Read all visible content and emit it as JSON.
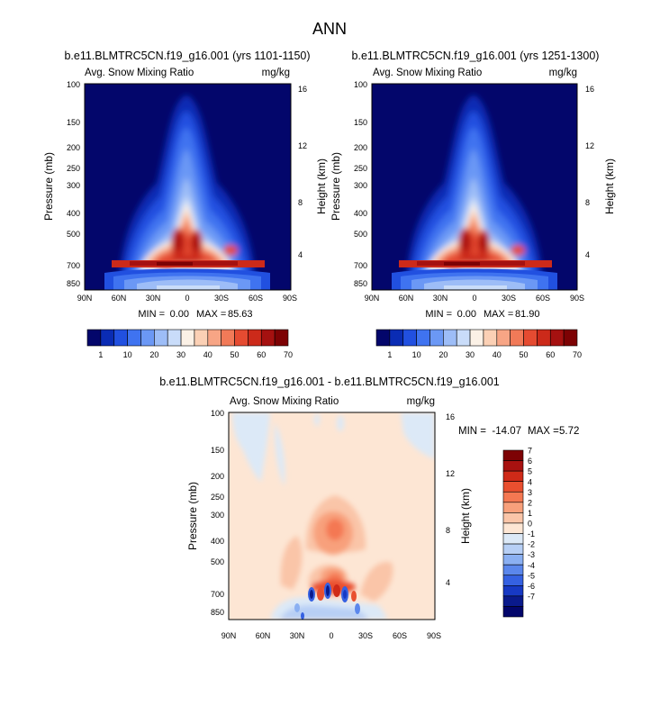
{
  "figure": {
    "title": "ANN"
  },
  "chart_data": [
    {
      "type": "heatmap",
      "title": "b.e11.BLMTRC5CN.f19_g16.001 (yrs 1101-1150)",
      "subtitle_left": "Avg. Snow Mixing Ratio",
      "subtitle_right": "mg/kg",
      "xlabel": "",
      "ylabel": "Pressure (mb)",
      "ylabel_right": "Height (km)",
      "x_ticks": [
        "90N",
        "60N",
        "30N",
        "0",
        "30S",
        "60S",
        "90S"
      ],
      "y_ticks": [
        "100",
        "150",
        "200",
        "250",
        "300",
        "400",
        "500",
        "700",
        "850"
      ],
      "y_ticks_right": [
        "16",
        "12",
        "8",
        "4"
      ],
      "stats": {
        "min_label": "MIN =",
        "min": "0.00",
        "max_label": "MAX =",
        "max": "85.63"
      }
    },
    {
      "type": "heatmap",
      "title": "b.e11.BLMTRC5CN.f19_g16.001 (yrs 1251-1300)",
      "subtitle_left": "Avg. Snow Mixing Ratio",
      "subtitle_right": "mg/kg",
      "xlabel": "",
      "ylabel": "Pressure (mb)",
      "ylabel_right": "Height (km)",
      "x_ticks": [
        "90N",
        "60N",
        "30N",
        "0",
        "30S",
        "60S",
        "90S"
      ],
      "y_ticks": [
        "100",
        "150",
        "200",
        "250",
        "300",
        "400",
        "500",
        "700",
        "850"
      ],
      "y_ticks_right": [
        "16",
        "12",
        "8",
        "4"
      ],
      "stats": {
        "min_label": "MIN =",
        "min": "0.00",
        "max_label": "MAX =",
        "max": "81.90"
      }
    },
    {
      "type": "heatmap",
      "title": "b.e11.BLMTRC5CN.f19_g16.001 - b.e11.BLMTRC5CN.f19_g16.001",
      "subtitle_left": "Avg. Snow Mixing Ratio",
      "subtitle_right": "mg/kg",
      "xlabel": "",
      "ylabel": "Pressure (mb)",
      "ylabel_right": "Height (km)",
      "x_ticks": [
        "90N",
        "60N",
        "30N",
        "0",
        "30S",
        "60S",
        "90S"
      ],
      "y_ticks": [
        "100",
        "150",
        "200",
        "250",
        "300",
        "400",
        "500",
        "700",
        "850"
      ],
      "y_ticks_right": [
        "16",
        "12",
        "8",
        "4"
      ],
      "stats": {
        "min_label": "MIN =",
        "min": "-14.07",
        "max_label": "MAX =",
        "max": "5.72"
      }
    }
  ],
  "colorbar_top": {
    "labels": [
      "1",
      "10",
      "20",
      "30",
      "40",
      "50",
      "60",
      "70"
    ],
    "colors": [
      "#03066b",
      "#0a2cb4",
      "#2150e0",
      "#3f73f0",
      "#6b98f5",
      "#9dbdf7",
      "#c9dcf9",
      "#fbf1e6",
      "#fbd0b5",
      "#f7a585",
      "#f17a58",
      "#e54b31",
      "#cc2a1a",
      "#a51110",
      "#7d0204"
    ]
  },
  "colorbar_diff": {
    "labels": [
      "7",
      "6",
      "5",
      "4",
      "3",
      "2",
      "1",
      "0",
      "-1",
      "-2",
      "-3",
      "-4",
      "-5",
      "-6",
      "-7"
    ],
    "colors": [
      "#7d0204",
      "#a81210",
      "#cf2a18",
      "#e94f2f",
      "#f47852",
      "#f8a07b",
      "#fac5a8",
      "#fde6d4",
      "#dce9f7",
      "#b7cff5",
      "#8bb0f2",
      "#5b87ec",
      "#3561e2",
      "#1739c4",
      "#0a1a8c",
      "#03066b"
    ]
  }
}
